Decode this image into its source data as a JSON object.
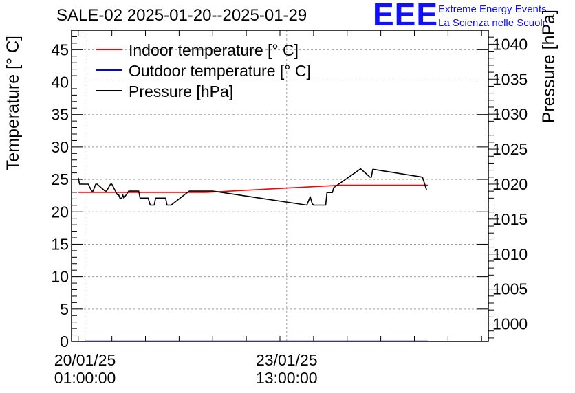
{
  "header": {
    "title": "SALE-02 2025-01-20--2025-01-29",
    "logo_text": "EEE",
    "project_line1": "Extreme Energy Events",
    "project_line2": "La Scienza nelle Scuole"
  },
  "colors": {
    "indoor": "#ff0000",
    "outdoor": "#0000ff",
    "pressure": "#000000",
    "logo": "#1010ff",
    "grid": "#a0a0a0"
  },
  "chart_data": {
    "type": "line",
    "title": "SALE-02 2025-01-20--2025-01-29",
    "ylabel": "Temperature [° C]",
    "y2label": "Pressure [hPa]",
    "ylim": [
      0,
      48
    ],
    "y2lim": [
      997.5,
      1042
    ],
    "yticks": [
      "0",
      "5",
      "10",
      "15",
      "20",
      "25",
      "30",
      "35",
      "40",
      "45"
    ],
    "y2ticks": [
      "1000",
      "1005",
      "1010",
      "1015",
      "1020",
      "1025",
      "1030",
      "1035",
      "1040"
    ],
    "xlim": [
      -0.2,
      6.0
    ],
    "xtick_labels": [
      {
        "x": 0,
        "line1": "20/01/25",
        "line2": "01:00:00"
      },
      {
        "x": 3,
        "line1": "23/01/25",
        "line2": "13:00:00"
      }
    ],
    "x_tick_unit": "3 x 3.5 days",
    "grid": true,
    "legend_position": "top-left",
    "legend": [
      {
        "name": "Indoor temperature [° C]",
        "series": "indoor"
      },
      {
        "name": "Outdoor temperature [° C]",
        "series": "outdoor"
      },
      {
        "name": "Pressure [hPa]",
        "series": "pressure"
      }
    ],
    "series": [
      {
        "name": "Indoor temperature [° C]",
        "key": "indoor",
        "axis": "left",
        "x": [
          -0.1,
          1.8,
          3.8,
          5.1
        ],
        "y": [
          23.0,
          23.0,
          24.1,
          24.1
        ]
      },
      {
        "name": "Outdoor temperature [° C]",
        "key": "outdoor",
        "axis": "left",
        "x": [
          0,
          5.1
        ],
        "y": [
          0.05,
          0.05
        ]
      },
      {
        "name": "Pressure [hPa]",
        "key": "pressure",
        "axis": "right",
        "x": [
          -0.1,
          -0.08,
          0.05,
          0.1,
          0.12,
          0.16,
          0.18,
          0.3,
          0.32,
          0.38,
          0.4,
          0.48,
          0.5,
          0.52,
          0.55,
          0.56,
          0.58,
          0.65,
          0.8,
          0.82,
          0.94,
          0.97,
          1.03,
          1.05,
          1.2,
          1.22,
          1.28,
          1.55,
          1.9,
          3.3,
          3.35,
          3.38,
          3.4,
          3.58,
          3.6,
          3.68,
          3.7,
          3.85,
          4.1,
          4.24,
          4.26,
          4.28,
          4.3,
          5.02,
          5.08
        ],
        "y": [
          1020.9,
          1020.0,
          1020.0,
          1019.0,
          1019.0,
          1020.0,
          1020.0,
          1019.0,
          1019.0,
          1020.0,
          1020.0,
          1018.5,
          1018.5,
          1018.0,
          1018.0,
          1018.5,
          1018.0,
          1019.0,
          1019.0,
          1018.0,
          1018.0,
          1017.0,
          1017.0,
          1018.0,
          1018.0,
          1017.0,
          1017.0,
          1019.0,
          1019.0,
          1017.0,
          1018.2,
          1017.2,
          1017.0,
          1017.0,
          1018.8,
          1018.8,
          1019.5,
          1020.5,
          1022.2,
          1021.0,
          1021.0,
          1022.1,
          1022.1,
          1021.0,
          1019.2
        ]
      }
    ]
  }
}
